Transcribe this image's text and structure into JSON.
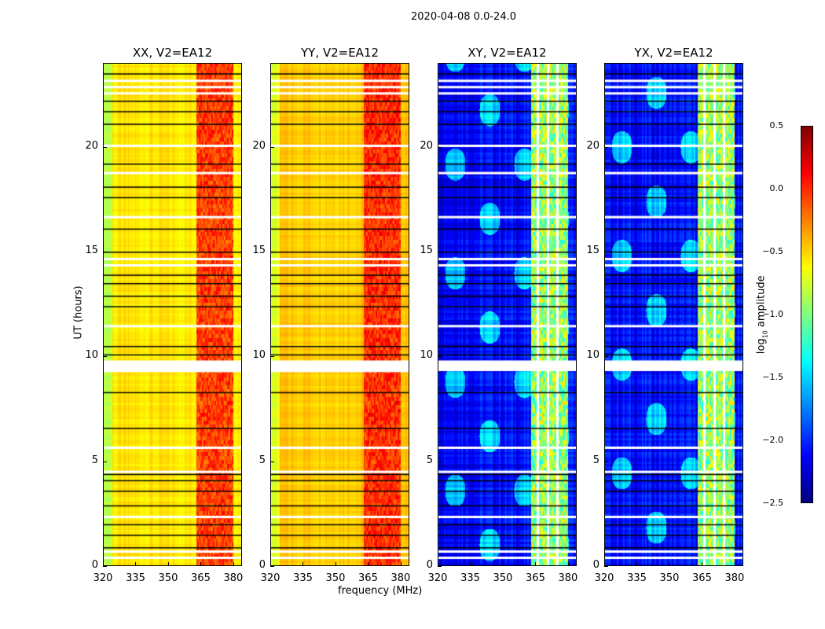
{
  "chart_data": {
    "type": "heatmap",
    "title": "2020-04-08 0.0-24.0",
    "xlabel": "frequency (MHz)",
    "ylabel": "UT (hours)",
    "xlim": [
      320,
      384
    ],
    "ylim": [
      0,
      24
    ],
    "xticks": [
      "320",
      "335",
      "350",
      "365",
      "380"
    ],
    "yticks": [
      "0",
      "5",
      "10",
      "15",
      "20"
    ],
    "panels": [
      {
        "title": "XX, V2=EA12",
        "base_log_amp": -0.6,
        "band_log_amp": -0.1
      },
      {
        "title": "YY, V2=EA12",
        "base_log_amp": -0.5,
        "band_log_amp": -0.05
      },
      {
        "title": "XY, V2=EA12",
        "base_log_amp": -2.2,
        "band_log_amp": -1.0
      },
      {
        "title": "YX, V2=EA12",
        "base_log_amp": -2.2,
        "band_log_amp": -1.0
      }
    ],
    "rfi_band_mhz": [
      363,
      380
    ],
    "flagged_hours_white": [
      0.45,
      0.75,
      2.4,
      4.55,
      5.7,
      9.5,
      9.8,
      11.5,
      14.4,
      14.7,
      16.7,
      18.8,
      20.1,
      22.6,
      22.9,
      23.2
    ],
    "flagged_hours_black": [
      0.9,
      1.5,
      2.0,
      2.9,
      3.6,
      4.1,
      4.4,
      6.6,
      8.3,
      10.1,
      10.5,
      12.4,
      12.9,
      13.5,
      13.9,
      15.0,
      16.1,
      17.6,
      18.1,
      19.2,
      21.1,
      21.7,
      22.2,
      23.5
    ],
    "colorbar": {
      "label": "log10 amplitude",
      "label_main": "log",
      "label_sub": "10",
      "label_rest": " amplitude",
      "range": [
        -2.5,
        0.5
      ],
      "ticks": [
        "0.5",
        "0.0",
        "−0.5",
        "−1.0",
        "−1.5",
        "−2.0",
        "−2.5"
      ],
      "colormap": "jet"
    }
  }
}
